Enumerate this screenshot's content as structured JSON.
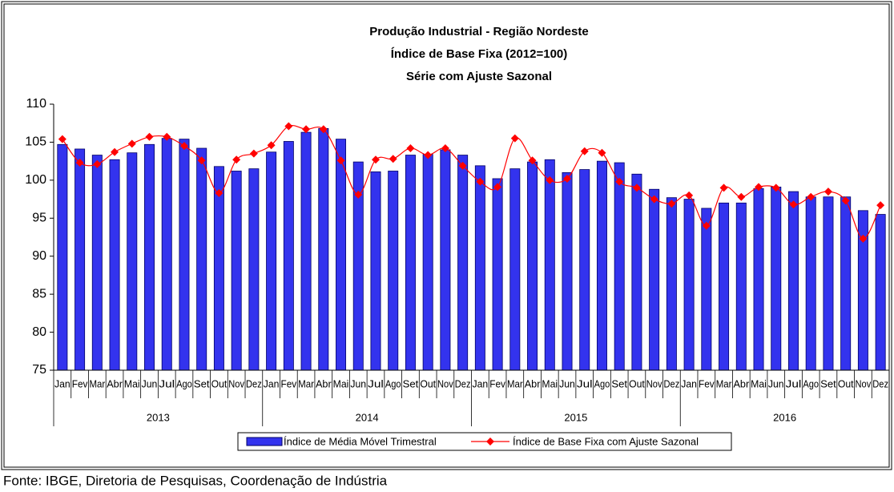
{
  "chart_data": {
    "type": "bar-line",
    "title": [
      "Produção Industrial - Região Nordeste",
      "Índice de Base Fixa (2012=100)",
      "Série com Ajuste Sazonal"
    ],
    "categories": [
      "Jan",
      "Fev",
      "Mar",
      "Abr",
      "Mai",
      "Jun",
      "Jul",
      "Ago",
      "Set",
      "Out",
      "Nov",
      "Dez",
      "Jan",
      "Fev",
      "Mar",
      "Abr",
      "Mai",
      "Jun",
      "Jul",
      "Ago",
      "Set",
      "Out",
      "Nov",
      "Dez",
      "Jan",
      "Fev",
      "Mar",
      "Abr",
      "Mai",
      "Jun",
      "Jul",
      "Ago",
      "Set",
      "Out",
      "Nov",
      "Dez",
      "Jan",
      "Fev",
      "Mar",
      "Abr",
      "Mai",
      "Jun",
      "Jul",
      "Ago",
      "Set",
      "Out",
      "Nov",
      "Dez"
    ],
    "groups": [
      "2013",
      "2014",
      "2015",
      "2016"
    ],
    "series": [
      {
        "name": "Índice de Média Móvel Trimestral",
        "type": "bar",
        "color": "#3333ee",
        "values": [
          104.7,
          104.1,
          103.3,
          102.7,
          103.6,
          104.7,
          105.5,
          105.4,
          104.2,
          101.8,
          101.2,
          101.5,
          103.7,
          105.1,
          106.3,
          106.8,
          105.4,
          102.4,
          101.1,
          101.2,
          103.3,
          103.4,
          104.0,
          103.3,
          101.9,
          100.2,
          101.5,
          102.4,
          102.7,
          101.0,
          101.4,
          102.5,
          102.3,
          100.8,
          98.8,
          97.7,
          97.5,
          96.3,
          97.0,
          97.0,
          98.9,
          99.1,
          98.5,
          97.8,
          97.8,
          97.8,
          96.0,
          95.5
        ]
      },
      {
        "name": "Índice de Base Fixa com Ajuste Sazonal",
        "type": "line",
        "color": "#ff0000",
        "values": [
          105.4,
          102.3,
          102.1,
          103.7,
          104.8,
          105.7,
          105.7,
          104.5,
          102.6,
          98.3,
          102.7,
          103.5,
          104.6,
          107.1,
          106.7,
          106.7,
          102.6,
          98.1,
          102.7,
          102.8,
          104.2,
          103.3,
          104.2,
          101.9,
          99.8,
          99.1,
          105.5,
          102.6,
          100.0,
          100.2,
          103.8,
          103.6,
          99.8,
          99.0,
          97.5,
          96.9,
          98.0,
          94.0,
          99.0,
          97.8,
          99.1,
          99.0,
          96.8,
          97.8,
          98.5,
          97.3,
          92.3,
          96.7
        ]
      }
    ],
    "ylim": [
      75,
      110
    ],
    "yticks": [
      75,
      80,
      85,
      90,
      95,
      100,
      105,
      110
    ],
    "grid": false,
    "legend": "bottom",
    "source": "Fonte: IBGE, Diretoria de Pesquisas, Coordenação de Indústria"
  }
}
